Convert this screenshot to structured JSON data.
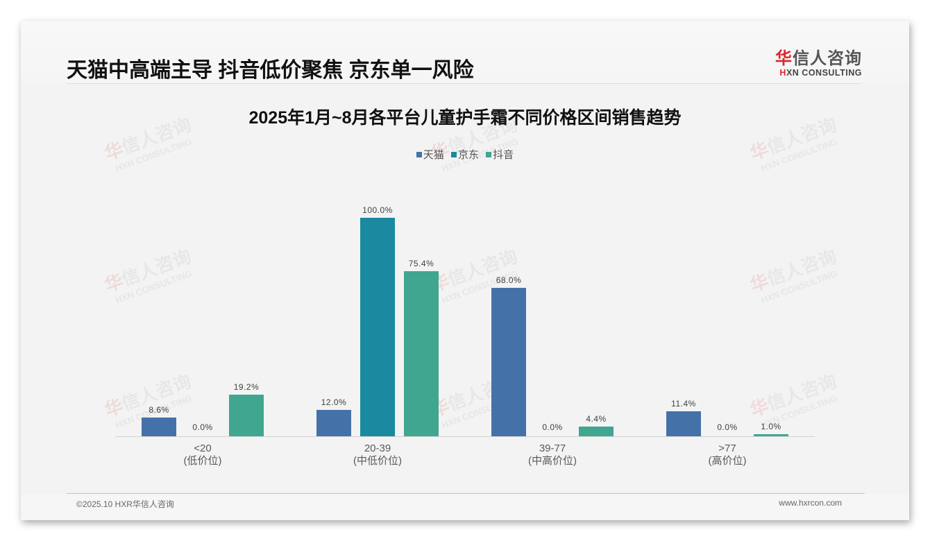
{
  "header": {
    "title": "天猫中高端主导 抖音低价聚焦 京东单一风险",
    "logo_cn_first": "华",
    "logo_cn_rest": "信人咨询",
    "logo_en_first": "H",
    "logo_en_rest": "XN CONSULTING"
  },
  "watermark": {
    "cn_first": "华",
    "cn_rest": "信人咨询",
    "en": "HXN CONSULTING"
  },
  "colors": {
    "tmall": "#4472a8",
    "jd": "#1a8aa0",
    "douyin": "#41a68f",
    "background": "#f3f3f3"
  },
  "chart_data": {
    "type": "bar",
    "title": "2025年1月~8月各平台儿童护手霜不同价格区间销售趋势",
    "xlabel": "",
    "ylabel": "",
    "ylim": [
      0,
      100
    ],
    "grid": false,
    "legend_position": "top",
    "categories": [
      "<20\n(低价位)",
      "20-39\n(中低价位)",
      "39-77\n(中高价位)",
      ">77\n(高价位)"
    ],
    "category_lines": [
      [
        "<20",
        "(低价位)"
      ],
      [
        "20-39",
        "(中低价位)"
      ],
      [
        "39-77",
        "(中高价位)"
      ],
      [
        ">77",
        "(高价位)"
      ]
    ],
    "series": [
      {
        "name": "天猫",
        "color": "#4472a8",
        "values": [
          8.6,
          12.0,
          68.0,
          11.4
        ],
        "labels": [
          "8.6%",
          "12.0%",
          "68.0%",
          "11.4%"
        ]
      },
      {
        "name": "京东",
        "color": "#1a8aa0",
        "values": [
          0.0,
          100.0,
          0.0,
          0.0
        ],
        "labels": [
          "0.0%",
          "100.0%",
          "0.0%",
          "0.0%"
        ]
      },
      {
        "name": "抖音",
        "color": "#41a68f",
        "values": [
          19.2,
          75.4,
          4.4,
          1.0
        ],
        "labels": [
          "19.2%",
          "75.4%",
          "4.4%",
          "1.0%"
        ]
      }
    ]
  },
  "footer": {
    "copyright": "©2025.10 HXR华信人咨询",
    "website": "www.hxrcon.com"
  }
}
